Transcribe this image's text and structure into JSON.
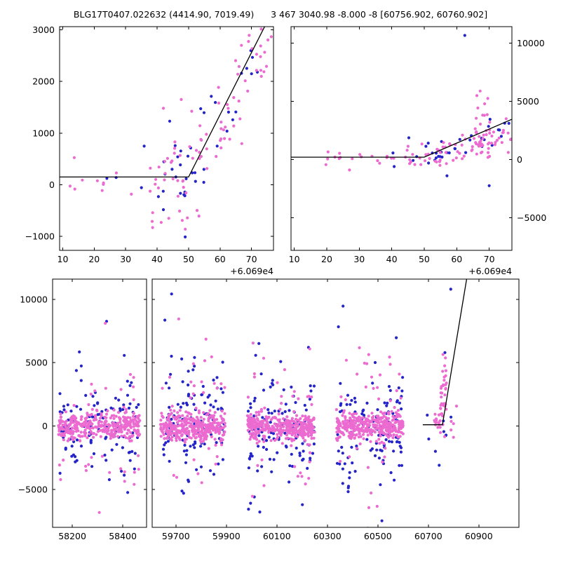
{
  "chart_data": {
    "type": "scatter",
    "title": "BLG17T0407.022632 (4414.90, 7019.49)      3 467 3040.98 -8.000 -8 [60756.902, 60760.902]",
    "title_parts": [
      "BLG17T0407.022632 (4414.90, 7019.49)",
      "3 467 3040.98 -8.000 -8 [60756.902, 60760.902]"
    ],
    "grid": false,
    "legend": null,
    "series": [
      {
        "name": "blue",
        "color": "#2424c8",
        "marker": "dot"
      },
      {
        "name": "magenta",
        "color": "#ec6bd0",
        "marker": "dot"
      }
    ],
    "model_line_color": "#000000",
    "event_window": [
      60756.902,
      60760.902
    ],
    "axes": [
      {
        "id": "top-left",
        "x": {
          "min": 60709,
          "max": 60777,
          "offset_label": "+6.069e4",
          "ticks": [
            {
              "v": 60710,
              "label": "10"
            },
            {
              "v": 60720,
              "label": "20"
            },
            {
              "v": 60730,
              "label": "30"
            },
            {
              "v": 60740,
              "label": "40"
            },
            {
              "v": 60750,
              "label": "50"
            },
            {
              "v": 60760,
              "label": "60"
            },
            {
              "v": 60770,
              "label": "70"
            }
          ]
        },
        "y": {
          "min": -1270,
          "max": 3060,
          "labels": "left",
          "ticks": [
            {
              "v": -1000,
              "label": "−1000"
            },
            {
              "v": 0,
              "label": "0"
            },
            {
              "v": 1000,
              "label": "1000"
            },
            {
              "v": 2000,
              "label": "2000"
            },
            {
              "v": 3000,
              "label": "3000"
            }
          ]
        },
        "line": [
          [
            60709,
            150
          ],
          [
            60750,
            150
          ],
          [
            60777,
            3400
          ]
        ],
        "clusters": [
          {
            "series": "blue",
            "n": 4,
            "x": [
              60714,
              60737
            ],
            "y": {
              "type": "gauss",
              "center": 150,
              "sigma": 300
            }
          },
          {
            "series": "blue",
            "n": 40,
            "x": [
              60740,
              60777
            ],
            "y": {
              "type": "model",
              "noise": 420,
              "scale": 0.95,
              "bias": 0
            }
          },
          {
            "series": "magenta",
            "n": 12,
            "x": [
              60712,
              60741
            ],
            "y": {
              "type": "gauss",
              "center": 20,
              "sigma": 260,
              "tail": 0.12,
              "tailSigma": 550
            }
          },
          {
            "series": "magenta",
            "n": 88,
            "x": [
              60737,
              60777
            ],
            "y": {
              "type": "model",
              "noise": 500,
              "scale": 0.88,
              "bias": -30
            }
          }
        ],
        "points": [
          {
            "series": "magenta",
            "pts": [
              [
                60748,
                -690
              ],
              [
                60742,
                1480
              ]
            ]
          },
          {
            "series": "blue",
            "pts": [
              [
                60744,
                1230
              ]
            ]
          }
        ]
      },
      {
        "id": "top-right",
        "x": {
          "min": 60709,
          "max": 60777,
          "offset_label": "+6.069e4",
          "ticks": [
            {
              "v": 60710,
              "label": "10"
            },
            {
              "v": 60720,
              "label": "20"
            },
            {
              "v": 60730,
              "label": "30"
            },
            {
              "v": 60740,
              "label": "40"
            },
            {
              "v": 60750,
              "label": "50"
            },
            {
              "v": 60760,
              "label": "60"
            },
            {
              "v": 60770,
              "label": "70"
            }
          ]
        },
        "y": {
          "min": -7800,
          "max": 11400,
          "labels": "right",
          "ticks": [
            {
              "v": -5000,
              "label": "−5000"
            },
            {
              "v": 0,
              "label": "0"
            },
            {
              "v": 5000,
              "label": "5000"
            },
            {
              "v": 10000,
              "label": "10000"
            }
          ]
        },
        "line": [
          [
            60709,
            200
          ],
          [
            60750,
            200
          ],
          [
            60777,
            3450
          ]
        ],
        "clusters": [
          {
            "series": "blue",
            "n": 6,
            "x": [
              60740,
              60758
            ],
            "y": {
              "type": "gauss",
              "center": 250,
              "sigma": 450
            }
          },
          {
            "series": "blue",
            "n": 30,
            "x": [
              60744,
              60777
            ],
            "y": {
              "type": "model",
              "noise": 650,
              "scale": 0.85
            }
          },
          {
            "series": "magenta",
            "n": 18,
            "x": [
              60718,
              60746
            ],
            "y": {
              "type": "gauss",
              "center": 120,
              "sigma": 280
            }
          },
          {
            "series": "magenta",
            "n": 78,
            "x": [
              60744,
              60777
            ],
            "y": {
              "type": "model",
              "noise": 600,
              "scale": 0.6,
              "bias": -50
            }
          },
          {
            "series": "magenta",
            "n": 24,
            "x": [
              60765.5,
              60770.5
            ],
            "y": {
              "type": "gauss",
              "center": 2900,
              "sigma": 1400
            }
          }
        ],
        "points": [
          {
            "series": "blue",
            "pts": [
              [
                60762.5,
                10650
              ],
              [
                60770,
                -2250
              ],
              [
                60757,
                -1400
              ]
            ]
          },
          {
            "series": "magenta",
            "pts": [
              [
                60727,
                -900
              ]
            ]
          }
        ]
      },
      {
        "id": "bottom-left-segment",
        "x": {
          "min": 58122,
          "max": 58494,
          "offset_label": null,
          "ticks": [
            {
              "v": 58200,
              "label": "58200"
            },
            {
              "v": 58400,
              "label": "58400"
            }
          ]
        },
        "y": {
          "min": -8000,
          "max": 11600,
          "labels": "left",
          "ticks": [
            {
              "v": -5000,
              "label": "−5000"
            },
            {
              "v": 0,
              "label": "0"
            },
            {
              "v": 5000,
              "label": "5000"
            },
            {
              "v": 10000,
              "label": "10000"
            }
          ]
        },
        "line": null,
        "clusters": [
          {
            "series": "blue",
            "n": 125,
            "x": [
              58148,
              58468
            ],
            "y": {
              "type": "gauss",
              "center": 0,
              "sigma": 1700,
              "tail": 0.3,
              "tailSigma": 4300
            }
          },
          {
            "series": "magenta",
            "n": 380,
            "x": [
              58145,
              58468
            ],
            "y": {
              "type": "gauss",
              "center": -60,
              "sigma": 550,
              "tail": 0.11,
              "tailSigma": 3300
            }
          }
        ],
        "points": []
      },
      {
        "id": "bottom-right-segment",
        "x": {
          "min": 59606,
          "max": 61059,
          "offset_label": null,
          "ticks": [
            {
              "v": 59700,
              "label": "59700"
            },
            {
              "v": 59900,
              "label": "59900"
            },
            {
              "v": 60100,
              "label": "60100"
            },
            {
              "v": 60300,
              "label": "60300"
            },
            {
              "v": 60500,
              "label": "60500"
            },
            {
              "v": 60700,
              "label": "60700"
            },
            {
              "v": 60900,
              "label": "60900"
            }
          ]
        },
        "y": {
          "min": -8000,
          "max": 11600,
          "labels": "none",
          "ticks": [
            {
              "v": -5000,
              "label": "−5000"
            },
            {
              "v": 0,
              "label": "0"
            },
            {
              "v": 5000,
              "label": "5000"
            },
            {
              "v": 10000,
              "label": "10000"
            }
          ]
        },
        "line": [
          [
            60678,
            100
          ],
          [
            60756,
            100
          ],
          [
            60862,
            12820
          ]
        ],
        "clusters": [
          {
            "series": "blue",
            "n": 125,
            "x": [
              59640,
              59893
            ],
            "y": {
              "type": "gauss",
              "center": 0,
              "sigma": 1700,
              "tail": 0.3,
              "tailSigma": 4300
            }
          },
          {
            "series": "magenta",
            "n": 390,
            "x": [
              59638,
              59895
            ],
            "y": {
              "type": "gauss",
              "center": -60,
              "sigma": 550,
              "tail": 0.11,
              "tailSigma": 3300
            }
          },
          {
            "series": "blue",
            "n": 130,
            "x": [
              59985,
              60248
            ],
            "y": {
              "type": "gauss",
              "center": 0,
              "sigma": 1700,
              "tail": 0.3,
              "tailSigma": 4300
            }
          },
          {
            "series": "magenta",
            "n": 400,
            "x": [
              59983,
              60250
            ],
            "y": {
              "type": "gauss",
              "center": -60,
              "sigma": 550,
              "tail": 0.11,
              "tailSigma": 3300
            }
          },
          {
            "series": "blue",
            "n": 125,
            "x": [
              60338,
              60600
            ],
            "y": {
              "type": "gauss",
              "center": 0,
              "sigma": 1700,
              "tail": 0.3,
              "tailSigma": 4300
            }
          },
          {
            "series": "magenta",
            "n": 380,
            "x": [
              60336,
              60602
            ],
            "y": {
              "type": "gauss",
              "center": -60,
              "sigma": 550,
              "tail": 0.11,
              "tailSigma": 3300
            }
          },
          {
            "series": "blue",
            "n": 7,
            "x": [
              60690,
              60800
            ],
            "y": {
              "type": "gauss",
              "center": 0,
              "sigma": 1400,
              "tail": 0.2,
              "tailSigma": 3000
            }
          },
          {
            "series": "magenta",
            "n": 16,
            "x": [
              60722,
              60752
            ],
            "y": {
              "type": "gauss",
              "center": 300,
              "sigma": 350
            }
          },
          {
            "series": "magenta",
            "n": 34,
            "x": [
              60748,
              60772
            ],
            "y": {
              "type": "gauss",
              "center": 2400,
              "sigma": 1800
            }
          },
          {
            "series": "magenta",
            "n": 5,
            "x": [
              60782,
              60815
            ],
            "y": {
              "type": "gauss",
              "center": 0,
              "sigma": 600
            }
          }
        ],
        "points": [
          {
            "series": "blue",
            "pts": [
              [
                60789,
                10800
              ],
              [
                60743,
                -3100
              ],
              [
                60728,
                -2000
              ],
              [
                60766,
                5800
              ]
            ]
          },
          {
            "series": "magenta",
            "pts": [
              [
                60758,
                5650
              ]
            ]
          }
        ]
      }
    ]
  }
}
